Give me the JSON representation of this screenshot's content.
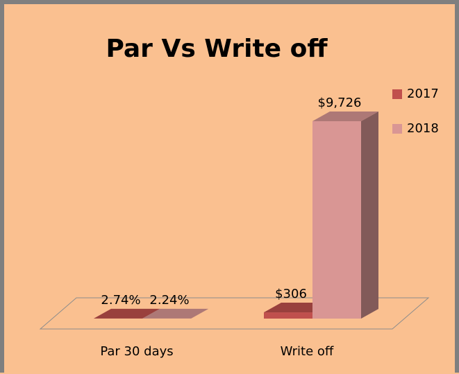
{
  "chart_data": {
    "type": "bar3d",
    "title": "Par Vs Write off",
    "categories": [
      "Par 30 days",
      "Write off"
    ],
    "series": [
      {
        "name": "2017",
        "color": "#c0504d",
        "values": [
          2.74,
          306
        ],
        "value_labels": [
          "2.74%",
          "$306"
        ]
      },
      {
        "name": "2018",
        "color": "#d99694",
        "values": [
          2.24,
          9726
        ],
        "value_labels": [
          "2.24%",
          "$9,726"
        ]
      }
    ],
    "legend": "right"
  }
}
